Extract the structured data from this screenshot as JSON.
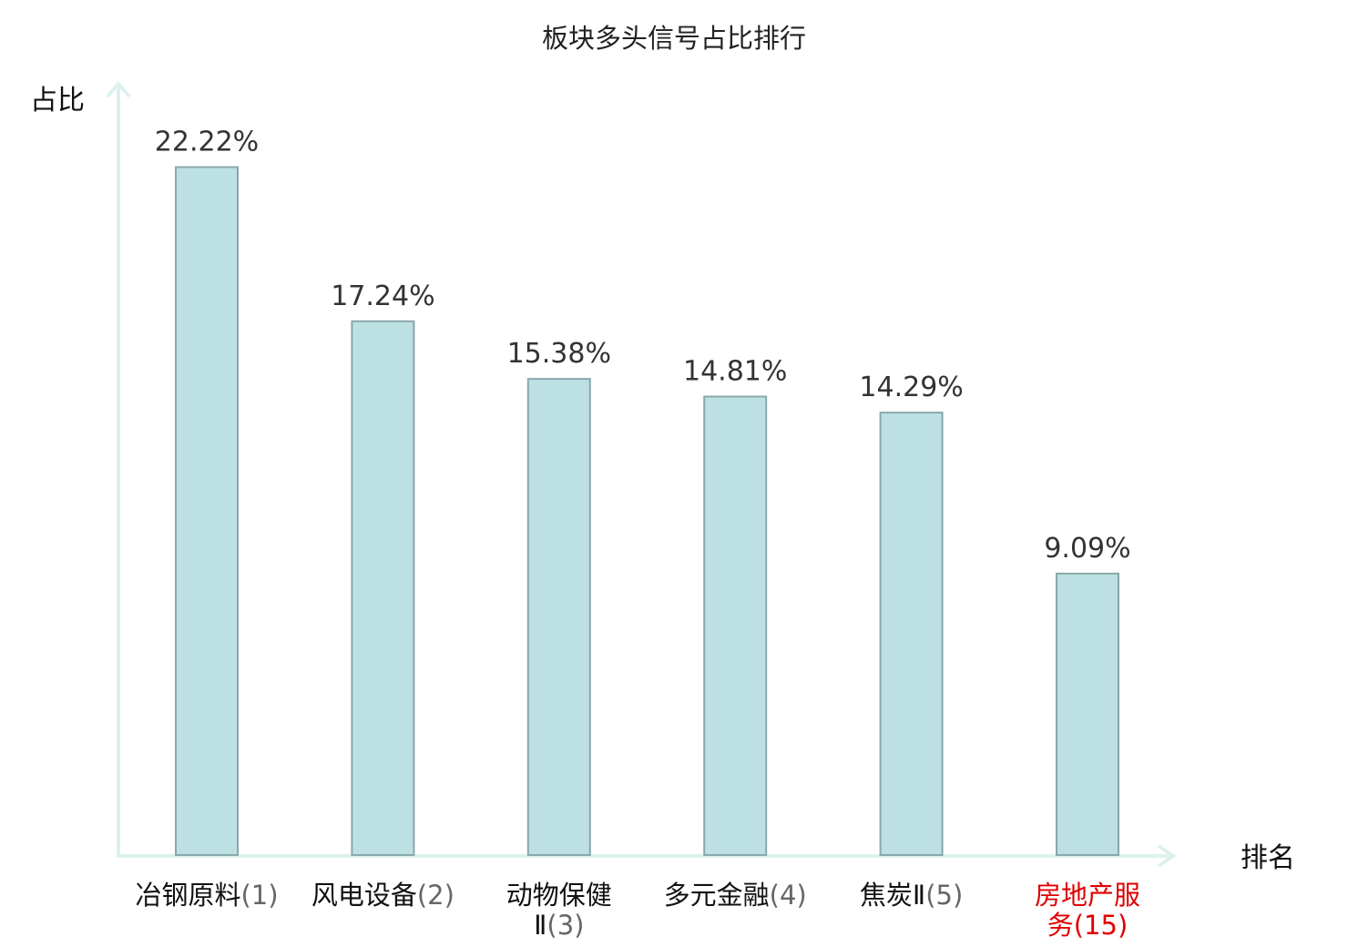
{
  "chart_data": {
    "type": "bar",
    "title": "板块多头信号占比排行",
    "ylabel": "占比",
    "xlabel": "排名",
    "ylim": [
      0,
      25
    ],
    "grid": false,
    "unit": "%",
    "categories": [
      {
        "name": "冶钢原料",
        "rank": "(1)",
        "highlight": false
      },
      {
        "name": "风电设备",
        "rank": "(2)",
        "highlight": false
      },
      {
        "name": "动物保健Ⅱ",
        "rank": "(3)",
        "highlight": false
      },
      {
        "name": "多元金融",
        "rank": "(4)",
        "highlight": false
      },
      {
        "name": "焦炭Ⅱ",
        "rank": "(5)",
        "highlight": false
      },
      {
        "name": "房地产服务",
        "rank": "(15)",
        "highlight": true
      }
    ],
    "values": [
      22.22,
      17.24,
      15.38,
      14.81,
      14.29,
      9.09
    ],
    "value_labels": [
      "22.22%",
      "17.24%",
      "15.38%",
      "14.81%",
      "14.29%",
      "9.09%"
    ]
  },
  "colors": {
    "bar_fill": "#bde0e2",
    "bar_stroke": "#8aa8aa",
    "axis": "#dcf1ee",
    "highlight": "#e00000"
  }
}
